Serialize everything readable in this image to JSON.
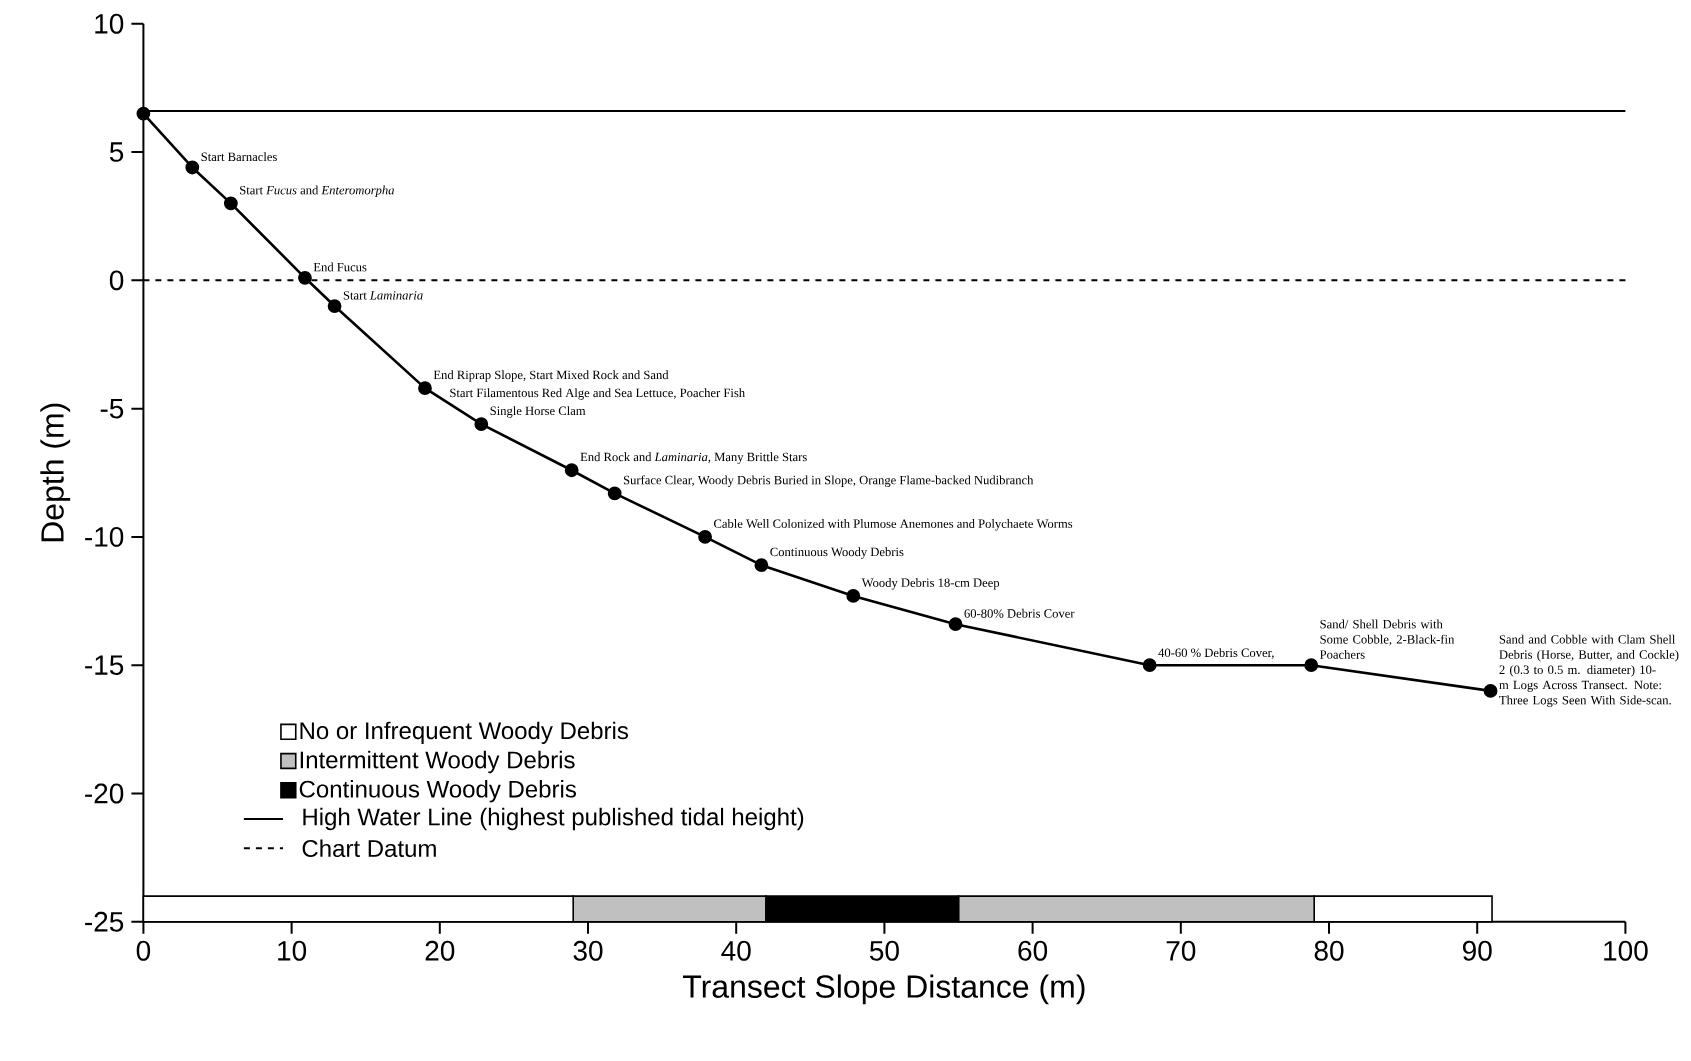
{
  "chart_data": [
    {
      "type": "line",
      "ylabel": "Depth (m)",
      "tick_labels": "y",
      "x": [
        0,
        3.3,
        5.9,
        10.9,
        12.9,
        19.0,
        22.8,
        28.9,
        31.8,
        37.9,
        41.7,
        47.9,
        54.8,
        67.9,
        78.8,
        90.9
      ],
      "series": [
        {
          "color": "#000000",
          "values": [
            6.5,
            4.4,
            3.0,
            0.1,
            -1.0,
            -4.2,
            -5.6,
            -7.4,
            -8.3,
            -10.0,
            -11.1,
            -12.3,
            -13.4,
            -15.0,
            -15.0,
            -16.0
          ]
        }
      ],
      "marker": "circle",
      "line_style": "solid",
      "legend": "bottom left",
      "xlim": [
        0,
        100
      ],
      "ylim": [
        -25,
        10
      ],
      "yticks": [
        -25,
        -20,
        -15,
        -10,
        -5,
        0,
        5,
        10
      ],
      "ref_lines": [
        {
          "axis": "y",
          "value": 6.6,
          "label": "High Water Line (highest published tidal height)",
          "line_style": "solid",
          "color": "#000000"
        },
        {
          "axis": "y",
          "value": 0,
          "label": "Chart Datum",
          "line_style": "dashed",
          "color": "#000000"
        }
      ],
      "annotations": [
        {
          "text": "Start Barnacles",
          "x": 3.3,
          "y": 4.4
        },
        {
          "text": "Start *Fucus* and *Enteromorpha*",
          "x": 5.9,
          "y": 3.0
        },
        {
          "text": "End Fucus",
          "x": 10.9,
          "y": 0.1
        },
        {
          "text": "Start *Laminaria*",
          "x": 12.9,
          "y": -1.0
        },
        {
          "text": "End Riprap Slope, Start Mixed Rock and Sand",
          "x": 19.0,
          "y": -4.2
        },
        {
          "text": "Start Filamentous Red Alge and Sea Lettuce, Poacher Fish",
          "x": 19.0,
          "y": -4.2
        },
        {
          "text": "Single Horse Clam",
          "x": 22.8,
          "y": -5.6
        },
        {
          "text": "End Rock and *Laminaria*, Many Brittle Stars",
          "x": 28.9,
          "y": -7.4
        },
        {
          "text": "Surface Clear, Woody Debris Buried in Slope, Orange Flame-backed Nudibranch",
          "x": 31.8,
          "y": -8.3
        },
        {
          "text": "Cable Well Colonized with Plumose Anemones and Polychaete Worms",
          "x": 37.9,
          "y": -10.0
        },
        {
          "text": "Continuous Woody Debris",
          "x": 41.7,
          "y": -11.1
        },
        {
          "text": "Woody Debris 18-cm Deep",
          "x": 47.9,
          "y": -12.3
        },
        {
          "text": "60-80% Debris Cover",
          "x": 54.8,
          "y": -13.4
        },
        {
          "text": "40-60 % Debris Cover,",
          "x": 67.9,
          "y": -15.0
        },
        {
          "text": "Sand/ Shell Debris with Some Cobble, 2-Black-fin Poachers",
          "x": 78.8,
          "y": -15.0
        },
        {
          "text": "Sand and Cobble with Clam Shell Debris (Horse, Butter, and Cockle) 2 (0.3 to 0.5 m. diameter) 10-m Logs Across Transect. Note: Three Logs Seen With Side-scan.",
          "x": 90.9,
          "y": -16.0
        }
      ]
    },
    {
      "type": "bar",
      "orientation": "horizontal",
      "stacked": true,
      "categories": [
        null
      ],
      "xlabel": "Transect Slope Distance (m)",
      "xlim": [
        0,
        100
      ],
      "xticks": [
        0,
        10,
        20,
        30,
        40,
        50,
        60,
        70,
        80,
        90,
        100
      ],
      "tick_labels": "x",
      "legend": "top left",
      "series": [
        {
          "name": "No or Infrequent Woody Debris",
          "color": "#ffffff",
          "values": [
            29
          ]
        },
        {
          "name": "Intermittent Woody Debris",
          "color": "#c0c0c0",
          "values": [
            13
          ]
        },
        {
          "name": "Continuous Woody Debris",
          "color": "#000000",
          "values": [
            13
          ]
        },
        {
          "color": "#c0c0c0",
          "values": [
            24
          ]
        },
        {
          "color": "#ffffff",
          "values": [
            12
          ]
        }
      ]
    }
  ]
}
